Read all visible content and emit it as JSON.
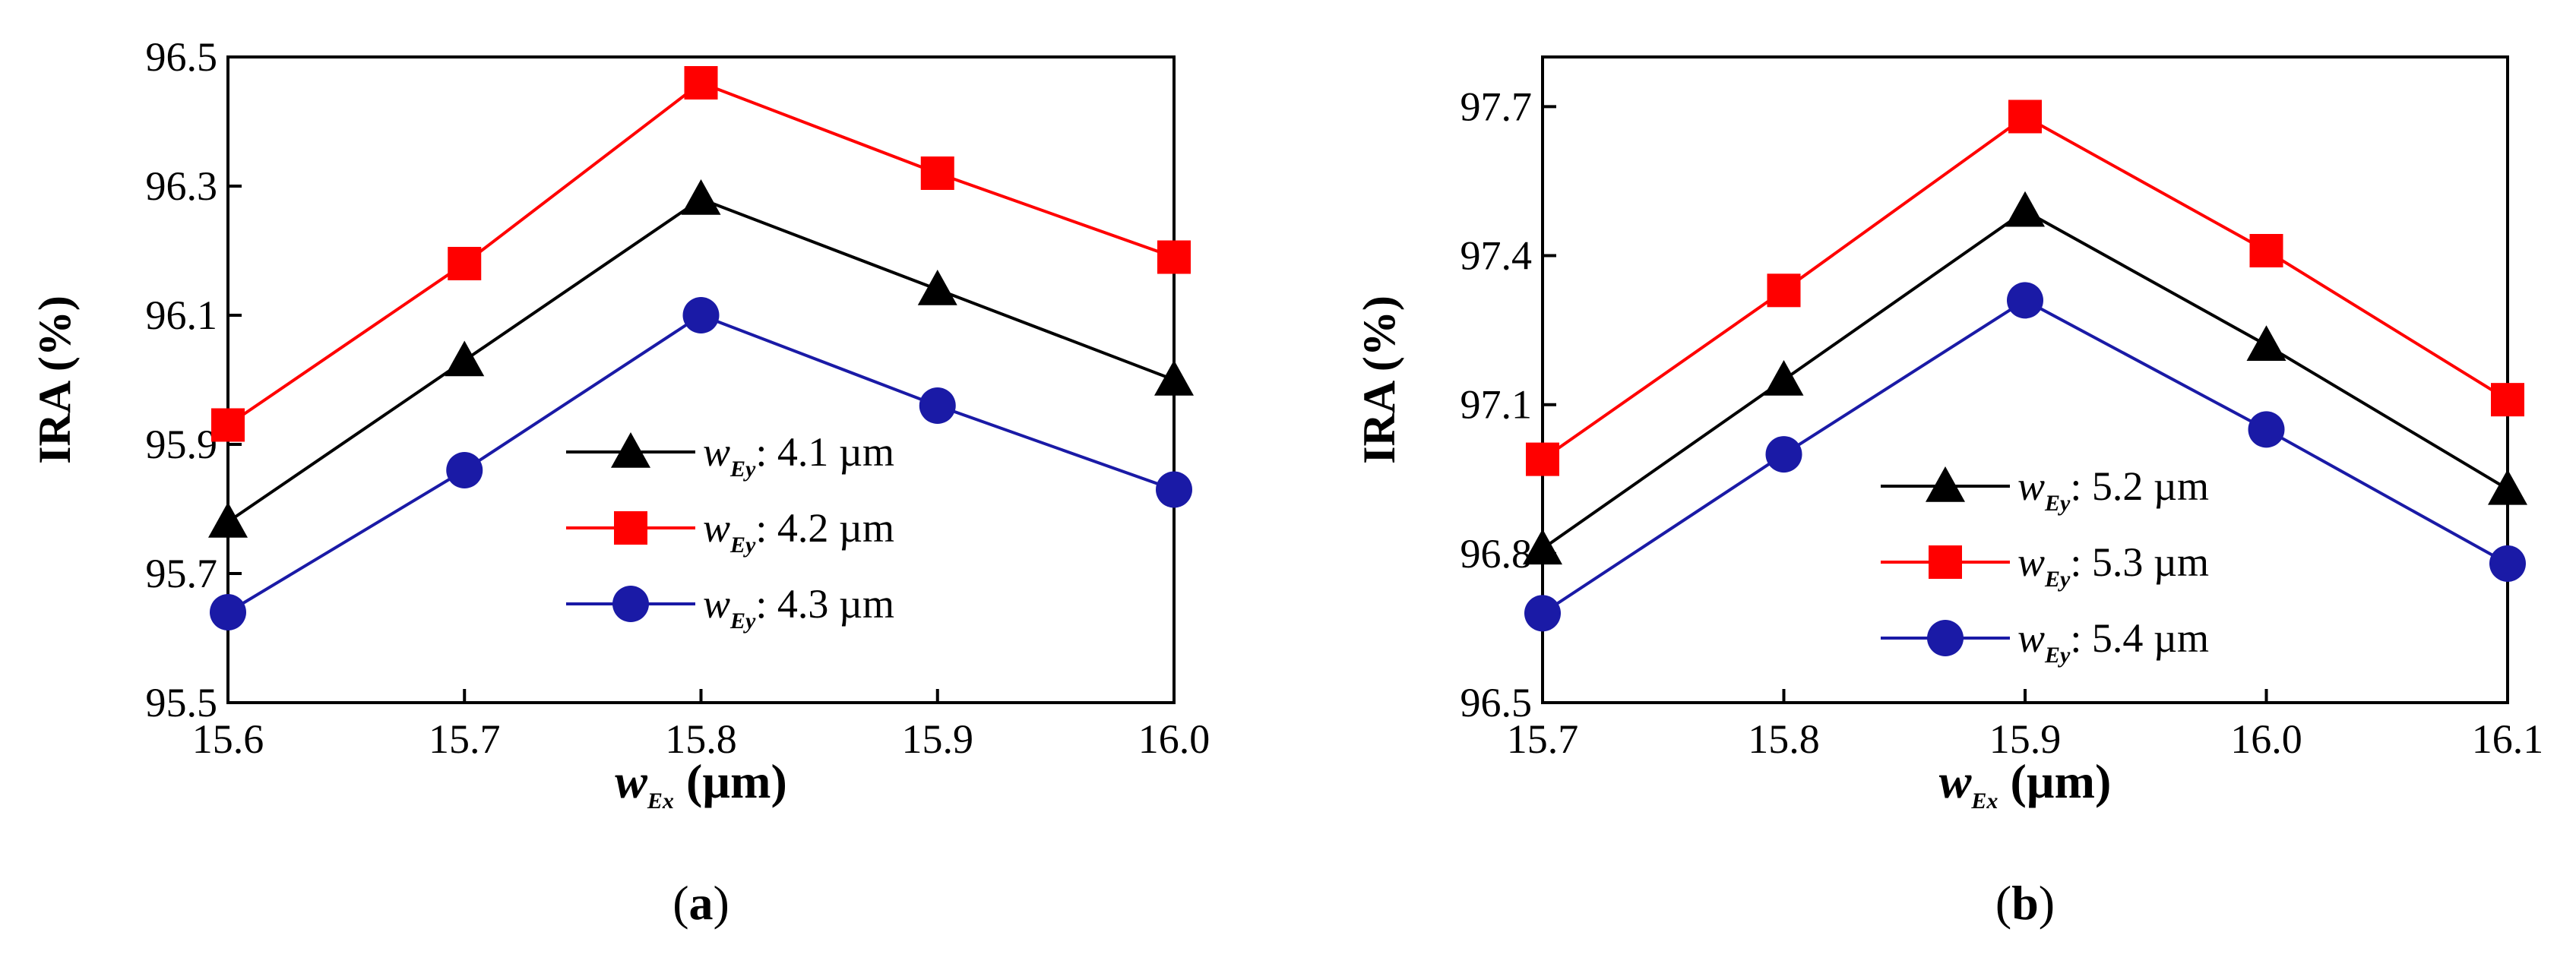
{
  "chart_data": [
    {
      "type": "line",
      "panel_label": "(",
      "panel_letter": "a",
      "panel_close": ")",
      "title": "",
      "xlabel": {
        "main": "w",
        "sub": "Ex",
        "unit": " (µm)"
      },
      "ylabel": "IRA (%)",
      "x": [
        15.6,
        15.7,
        15.8,
        15.9,
        16.0
      ],
      "xlim": [
        15.6,
        16.0
      ],
      "xticks": [
        "15.6",
        "15.7",
        "15.8",
        "15.9",
        "16.0"
      ],
      "ylim": [
        95.5,
        96.5
      ],
      "yticks": [
        "95.5",
        "95.7",
        "95.9",
        "96.1",
        "96.3",
        "96.5"
      ],
      "grid": false,
      "legend_position": "lower-right",
      "series": [
        {
          "name_main": "w",
          "name_sub": "Ey",
          "name_rest": ": 4.1 µm",
          "color": "#000000",
          "marker": "triangle",
          "values": [
            95.78,
            96.03,
            96.28,
            96.14,
            96.0
          ]
        },
        {
          "name_main": "w",
          "name_sub": "Ey",
          "name_rest": ": 4.2 µm",
          "color": "#ff0000",
          "marker": "square",
          "values": [
            95.93,
            96.18,
            96.46,
            96.32,
            96.19
          ]
        },
        {
          "name_main": "w",
          "name_sub": "Ey",
          "name_rest": ": 4.3 µm",
          "color": "#1a1aa6",
          "marker": "circle",
          "values": [
            95.64,
            95.86,
            96.1,
            95.96,
            95.83
          ]
        }
      ]
    },
    {
      "type": "line",
      "panel_label": "(",
      "panel_letter": "b",
      "panel_close": ")",
      "title": "",
      "xlabel": {
        "main": "w",
        "sub": "Ex",
        "unit": " (µm)"
      },
      "ylabel": "IRA (%)",
      "x": [
        15.7,
        15.8,
        15.9,
        16.0,
        16.1
      ],
      "xlim": [
        15.7,
        16.1
      ],
      "xticks": [
        "15.7",
        "15.8",
        "15.9",
        "16.0",
        "16.1"
      ],
      "ylim": [
        96.5,
        97.8
      ],
      "yticks": [
        "96.5",
        "96.8",
        "97.1",
        "97.4",
        "97.7"
      ],
      "grid": false,
      "legend_position": "lower-left",
      "series": [
        {
          "name_main": "w",
          "name_sub": "Ey",
          "name_rest": ": 5.2 µm",
          "color": "#000000",
          "marker": "triangle",
          "values": [
            96.81,
            97.15,
            97.49,
            97.22,
            96.93
          ]
        },
        {
          "name_main": "w",
          "name_sub": "Ey",
          "name_rest": ": 5.3 µm",
          "color": "#ff0000",
          "marker": "square",
          "values": [
            96.99,
            97.33,
            97.68,
            97.41,
            97.11
          ]
        },
        {
          "name_main": "w",
          "name_sub": "Ey",
          "name_rest": ": 5.4 µm",
          "color": "#1a1aa6",
          "marker": "circle",
          "values": [
            96.68,
            97.0,
            97.31,
            97.05,
            96.78
          ]
        }
      ]
    }
  ]
}
